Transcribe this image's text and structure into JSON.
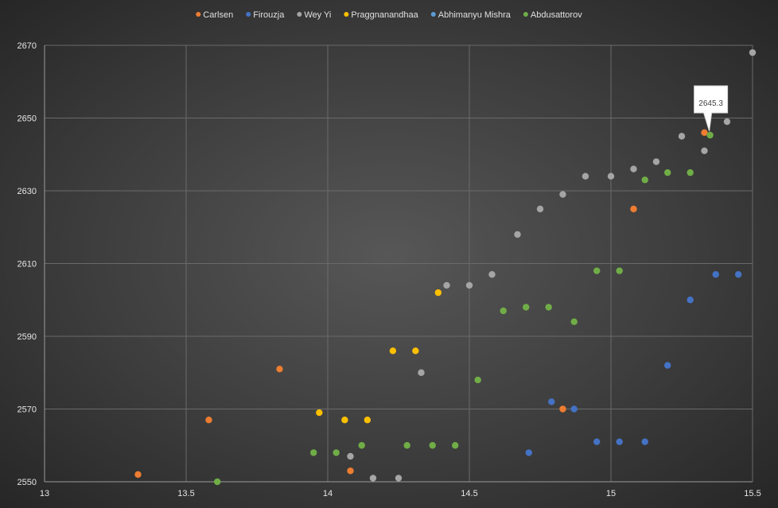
{
  "chart_data": {
    "type": "scatter",
    "xlim": [
      13,
      15.5
    ],
    "ylim": [
      2550,
      2670
    ],
    "x_ticks": [
      13,
      13.5,
      14,
      14.5,
      15,
      15.5
    ],
    "y_ticks": [
      2550,
      2570,
      2590,
      2610,
      2630,
      2650,
      2670
    ],
    "x_tick_labels": [
      "13",
      "13.5",
      "14",
      "14.5",
      "15",
      "15.5"
    ],
    "y_tick_labels": [
      "2550",
      "2570",
      "2590",
      "2610",
      "2630",
      "2650",
      "2670"
    ],
    "grid": true,
    "legend_position": "top",
    "series": [
      {
        "name": "Carlsen",
        "color": "#ED7D31",
        "points": [
          [
            13.33,
            2552
          ],
          [
            13.58,
            2567
          ],
          [
            13.83,
            2581
          ],
          [
            14.08,
            2553
          ],
          [
            14.83,
            2570
          ],
          [
            15.08,
            2625
          ],
          [
            15.33,
            2646
          ]
        ]
      },
      {
        "name": "Firouzja",
        "color": "#4472C4",
        "points": [
          [
            14.71,
            2558
          ],
          [
            14.79,
            2572
          ],
          [
            14.87,
            2570
          ],
          [
            14.95,
            2561
          ],
          [
            15.03,
            2561
          ],
          [
            15.12,
            2561
          ],
          [
            15.2,
            2582
          ],
          [
            15.28,
            2600
          ],
          [
            15.37,
            2607
          ],
          [
            15.45,
            2607
          ]
        ]
      },
      {
        "name": "Wey Yi",
        "color": "#A5A5A5",
        "points": [
          [
            14.08,
            2557
          ],
          [
            14.16,
            2551
          ],
          [
            14.25,
            2551
          ],
          [
            14.33,
            2580
          ],
          [
            14.42,
            2604
          ],
          [
            14.5,
            2604
          ],
          [
            14.58,
            2607
          ],
          [
            14.67,
            2618
          ],
          [
            14.75,
            2625
          ],
          [
            14.83,
            2629
          ],
          [
            14.91,
            2634
          ],
          [
            15.0,
            2634
          ],
          [
            15.08,
            2636
          ],
          [
            15.16,
            2638
          ],
          [
            15.25,
            2645
          ],
          [
            15.33,
            2641
          ],
          [
            15.41,
            2649
          ],
          [
            15.5,
            2668
          ]
        ]
      },
      {
        "name": "Praggnanandhaa",
        "color": "#FFC000",
        "points": [
          [
            13.97,
            2569
          ],
          [
            14.06,
            2567
          ],
          [
            14.14,
            2567
          ],
          [
            14.23,
            2586
          ],
          [
            14.31,
            2586
          ],
          [
            14.39,
            2602
          ]
        ]
      },
      {
        "name": "Abhimanyu Mishra",
        "color": "#5B9BD5",
        "points": []
      },
      {
        "name": "Abdusattorov",
        "color": "#70AD47",
        "points": [
          [
            13.61,
            2550
          ],
          [
            13.95,
            2558
          ],
          [
            14.03,
            2558
          ],
          [
            14.12,
            2560
          ],
          [
            14.28,
            2560
          ],
          [
            14.37,
            2560
          ],
          [
            14.45,
            2560
          ],
          [
            14.53,
            2578
          ],
          [
            14.62,
            2597
          ],
          [
            14.7,
            2598
          ],
          [
            14.78,
            2598
          ],
          [
            14.87,
            2594
          ],
          [
            14.95,
            2608
          ],
          [
            15.03,
            2608
          ],
          [
            15.12,
            2633
          ],
          [
            15.2,
            2635
          ],
          [
            15.28,
            2635
          ],
          [
            15.35,
            2645.3
          ]
        ]
      }
    ],
    "annotations": [
      {
        "text": "2645.3",
        "series": "Abdusattorov",
        "x": 15.35,
        "y": 2645.3
      }
    ]
  }
}
